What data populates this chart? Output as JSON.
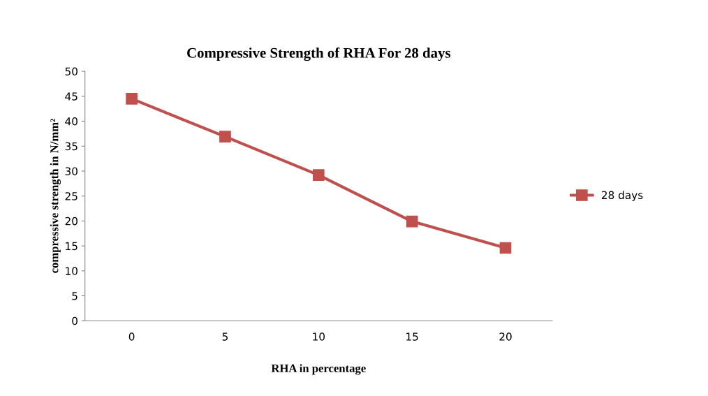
{
  "chart_data": {
    "type": "line",
    "title": "Compressive Strength of RHA For 28 days",
    "xlabel": "RHA in percentage",
    "ylabel": "compressive strength in N/mm²",
    "categories": [
      "0",
      "5",
      "10",
      "15",
      "20"
    ],
    "series": [
      {
        "name": "28 days",
        "color": "#c0504d",
        "values": [
          44.5,
          36.9,
          29.2,
          19.9,
          14.6
        ]
      }
    ],
    "ylim": [
      0,
      50
    ],
    "yticks": [
      0,
      5,
      10,
      15,
      20,
      25,
      30,
      35,
      40,
      45,
      50
    ],
    "grid": false,
    "legend": "right",
    "marker": "square",
    "line_style": "solid"
  }
}
